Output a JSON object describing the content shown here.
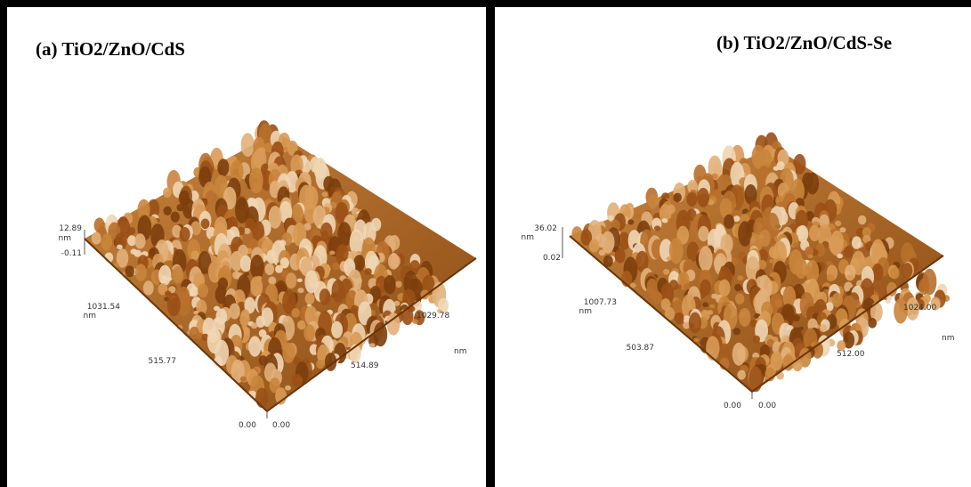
{
  "panels": [
    {
      "title": "(a) TiO2/ZnO/CdS",
      "z_axis": {
        "top": "12.89",
        "unit": "nm",
        "bottom": "-0.11"
      },
      "y_axis": {
        "end": "1031.54",
        "unit": "nm",
        "mid": "515.77"
      },
      "x_axis": {
        "end": "1029.78",
        "mid": "514.89",
        "unit": "nm"
      },
      "origin": [
        "0.00",
        "0.00"
      ]
    },
    {
      "title": "(b) TiO2/ZnO/CdS-Se",
      "z_axis": {
        "top": "36.02",
        "unit": "nm",
        "bottom": "0.02"
      },
      "y_axis": {
        "end": "1007.73",
        "unit": "nm",
        "mid": "503.87"
      },
      "x_axis": {
        "end": "1024.00",
        "mid": "512.00",
        "unit": "nm"
      },
      "origin": [
        "0.00",
        "0.00"
      ]
    }
  ]
}
